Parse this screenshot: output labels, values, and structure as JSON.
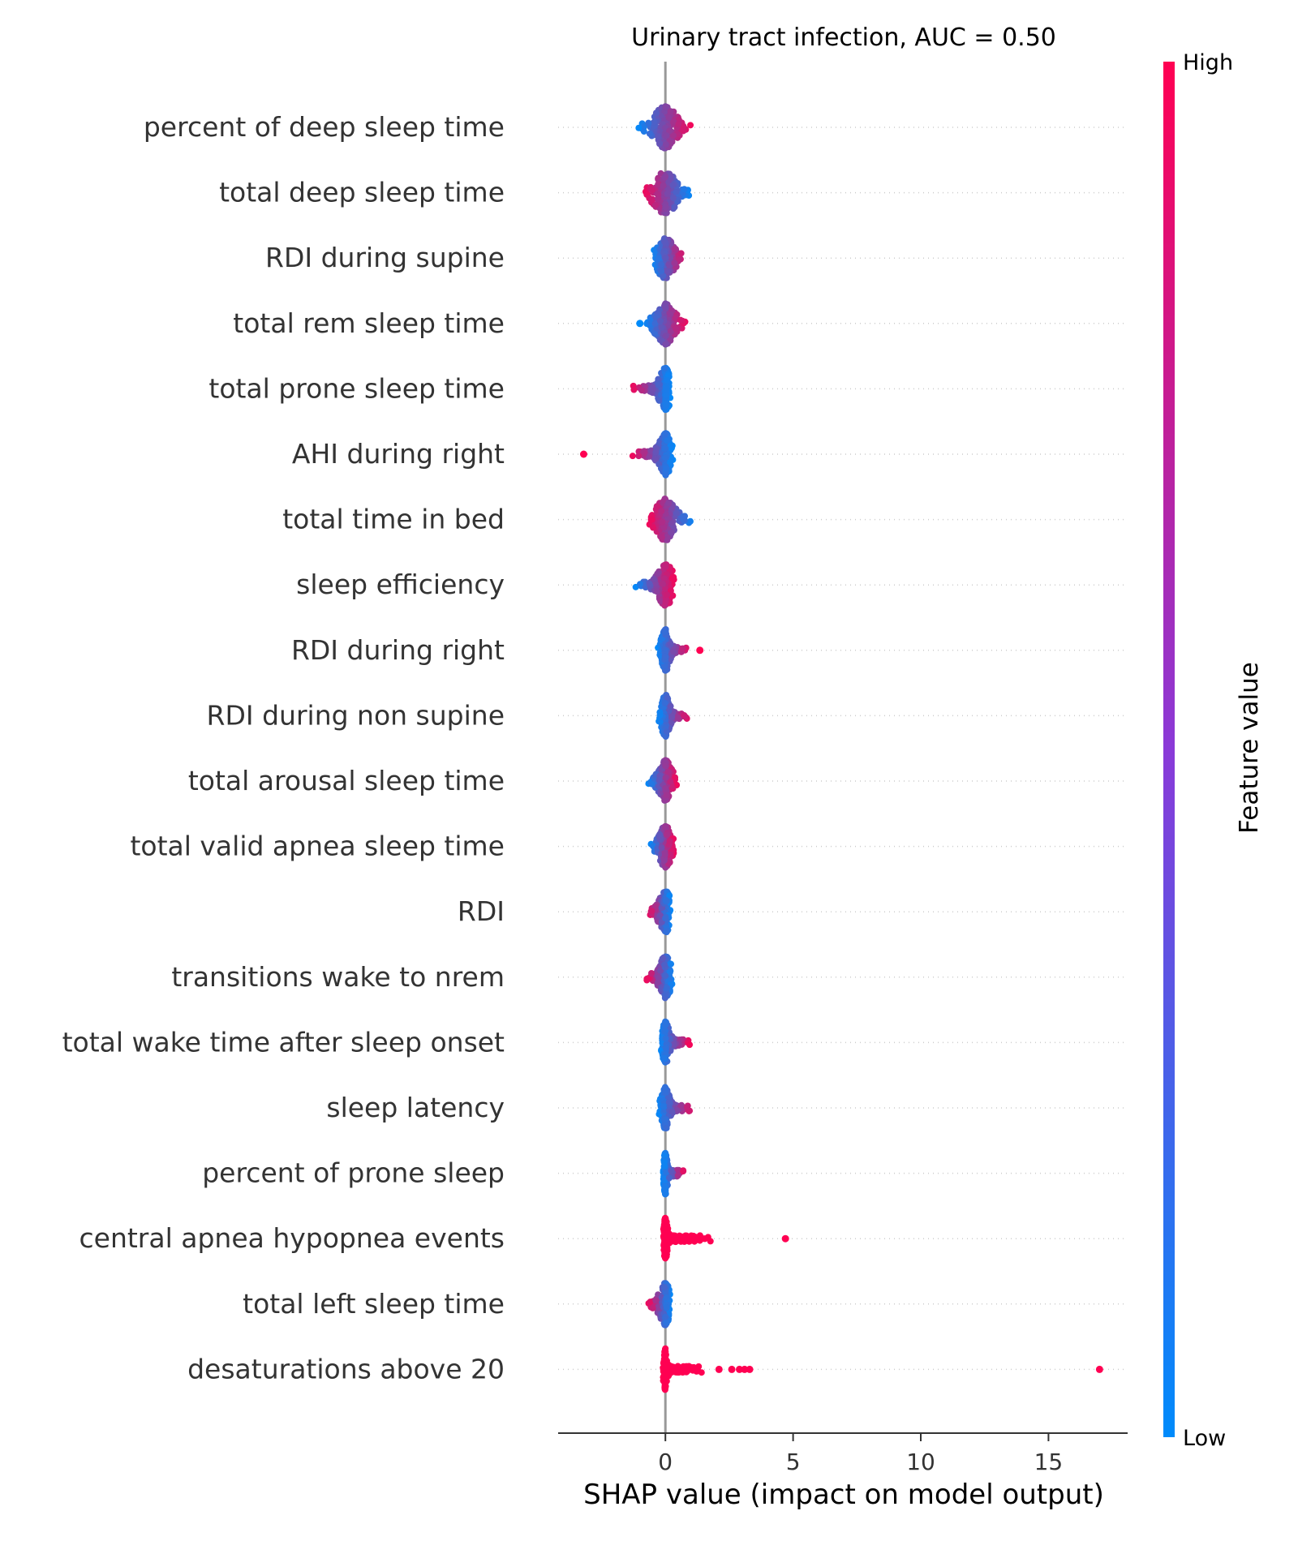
{
  "chart_data": {
    "type": "scatter",
    "subtype": "shap-beeswarm",
    "title": "Urinary tract infection, AUC =  0.50",
    "xlabel": "SHAP value (impact on model output)",
    "xlim": [
      -4.2,
      18.1
    ],
    "xticks": [
      0,
      5,
      10,
      15
    ],
    "zero_line": true,
    "grid": false,
    "colorbar": {
      "title": "Feature value",
      "high_label": "High",
      "low_label": "Low",
      "high_color": "#ff0052",
      "mid_color": "#b300b8",
      "low_color": "#008bfb"
    },
    "features": [
      {
        "name": "percent of deep sleep time",
        "min": -1.1,
        "max": 1.1,
        "left_color": "low",
        "right_color": "high",
        "spread": 0.55,
        "outliers": []
      },
      {
        "name": "total deep sleep time",
        "min": -0.9,
        "max": 1.0,
        "left_color": "high",
        "right_color": "low",
        "spread": 0.55,
        "outliers": []
      },
      {
        "name": "RDI during supine",
        "min": -0.5,
        "max": 0.9,
        "left_color": "low",
        "right_color": "high",
        "spread": 0.4,
        "outliers": []
      },
      {
        "name": "total rem sleep time",
        "min": -0.8,
        "max": 0.9,
        "left_color": "low",
        "right_color": "high",
        "spread": 0.45,
        "outliers": [
          -1.0
        ]
      },
      {
        "name": "total prone sleep time",
        "min": -1.4,
        "max": 0.2,
        "left_color": "high",
        "right_color": "low",
        "spread": 0.3,
        "outliers": []
      },
      {
        "name": "AHI during right",
        "min": -1.4,
        "max": 0.3,
        "left_color": "high",
        "right_color": "low",
        "spread": 0.3,
        "outliers": [
          -3.2
        ]
      },
      {
        "name": "total time in bed",
        "min": -0.7,
        "max": 1.1,
        "left_color": "high",
        "right_color": "low",
        "spread": 0.45,
        "outliers": []
      },
      {
        "name": "sleep efficiency",
        "min": -1.2,
        "max": 0.4,
        "left_color": "low",
        "right_color": "high",
        "spread": 0.4,
        "outliers": []
      },
      {
        "name": "RDI during right",
        "min": -0.3,
        "max": 1.0,
        "left_color": "low",
        "right_color": "high",
        "spread": 0.2,
        "outliers": [
          1.35
        ]
      },
      {
        "name": "RDI during non supine",
        "min": -0.3,
        "max": 1.0,
        "left_color": "low",
        "right_color": "high",
        "spread": 0.2,
        "outliers": []
      },
      {
        "name": "total arousal sleep time",
        "min": -0.7,
        "max": 0.5,
        "left_color": "low",
        "right_color": "high",
        "spread": 0.3,
        "outliers": []
      },
      {
        "name": "total valid apnea sleep time",
        "min": -0.6,
        "max": 0.4,
        "left_color": "low",
        "right_color": "high",
        "spread": 0.3,
        "outliers": []
      },
      {
        "name": "RDI",
        "min": -0.7,
        "max": 0.2,
        "left_color": "high",
        "right_color": "low",
        "spread": 0.3,
        "outliers": []
      },
      {
        "name": "transitions wake to nrem",
        "min": -0.8,
        "max": 0.3,
        "left_color": "high",
        "right_color": "low",
        "spread": 0.3,
        "outliers": []
      },
      {
        "name": "total wake time after sleep onset",
        "min": -0.2,
        "max": 1.0,
        "left_color": "low",
        "right_color": "high",
        "spread": 0.2,
        "outliers": []
      },
      {
        "name": "sleep latency",
        "min": -0.3,
        "max": 1.2,
        "left_color": "low",
        "right_color": "high",
        "spread": 0.2,
        "outliers": []
      },
      {
        "name": "percent of prone sleep",
        "min": -0.1,
        "max": 0.8,
        "left_color": "low",
        "right_color": "high",
        "spread": 0.1,
        "outliers": []
      },
      {
        "name": "central apnea hypopnea events",
        "min": -0.1,
        "max": 2.0,
        "left_color": "high",
        "right_color": "high",
        "spread": 0.1,
        "outliers": [
          4.7
        ]
      },
      {
        "name": "total left sleep time",
        "min": -0.7,
        "max": 0.2,
        "left_color": "high",
        "right_color": "low",
        "spread": 0.3,
        "outliers": []
      },
      {
        "name": "desaturations above 20",
        "min": -0.1,
        "max": 1.5,
        "left_color": "high",
        "right_color": "high",
        "spread": 0.1,
        "outliers": [
          2.1,
          2.6,
          2.9,
          3.1,
          3.3,
          17.0
        ]
      }
    ]
  }
}
